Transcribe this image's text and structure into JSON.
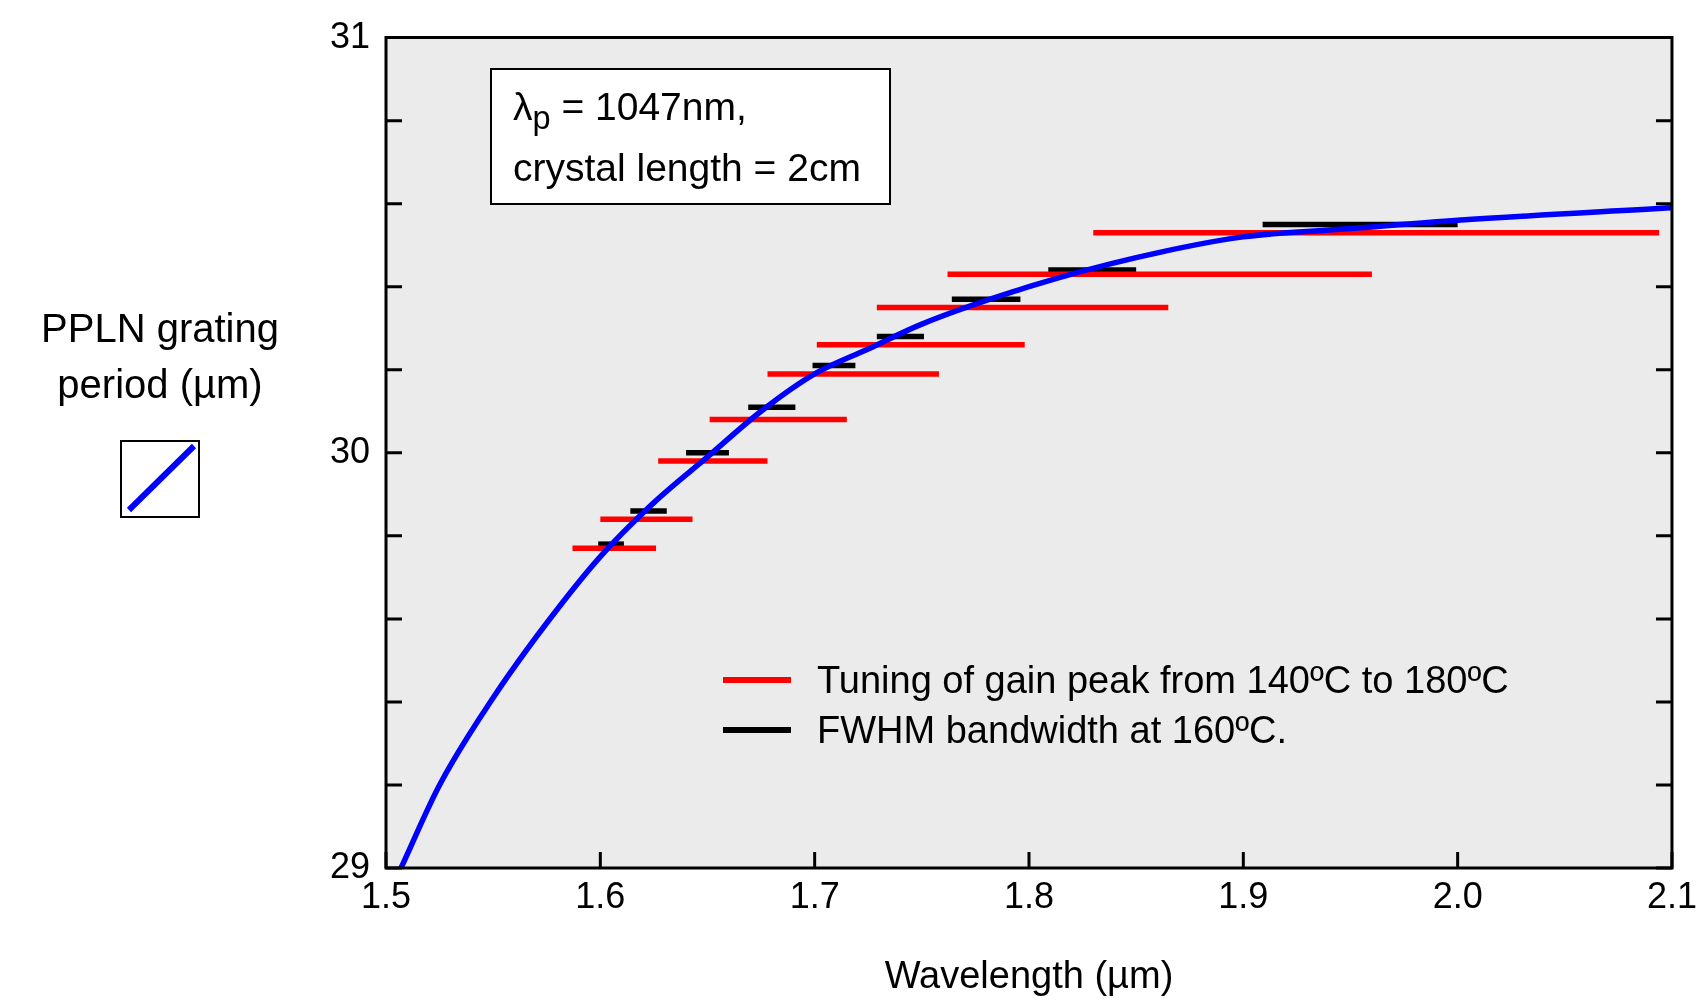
{
  "chart_data": {
    "type": "line",
    "xlabel": "Wavelength (µm)",
    "ylabel": "PPLN grating\nperiod (µm)",
    "xlim": [
      1.5,
      2.1
    ],
    "ylim": [
      29,
      31
    ],
    "xticks": [
      1.5,
      1.6,
      1.7,
      1.8,
      1.9,
      {
        "value": 2.0,
        "label": "2.0"
      },
      2.1
    ],
    "yticks": [
      29,
      {
        "value": 29.2,
        "label": null
      },
      {
        "value": 29.4,
        "label": null
      },
      {
        "value": 29.6,
        "label": null
      },
      {
        "value": 29.8,
        "label": null
      },
      30,
      {
        "value": 30.2,
        "label": null
      },
      {
        "value": 30.4,
        "label": null
      },
      {
        "value": 30.6,
        "label": null
      },
      {
        "value": 30.8,
        "label": null
      },
      31
    ],
    "grid": false,
    "legend": "bottom right",
    "line_style": "solid",
    "marker": "none",
    "annotations": [
      "λ$_{p}$ = 1047nm,\ncrystal length = 2cm"
    ],
    "series": [
      {
        "color": "#0000ff",
        "x": [
          1.507,
          1.525,
          1.55,
          1.575,
          1.6,
          1.625,
          1.65,
          1.675,
          1.7,
          1.725,
          1.75,
          1.8,
          1.85,
          1.9,
          1.95,
          2.0,
          2.1
        ],
        "values": [
          29.0,
          29.2,
          29.41,
          29.59,
          29.75,
          29.88,
          29.99,
          30.1,
          30.19,
          30.25,
          30.31,
          30.4,
          30.47,
          30.52,
          30.54,
          30.56,
          30.59
        ]
      },
      {
        "name": "Tuning of gain peak from 140ºC to 180ºC",
        "color": "#ff0000",
        "x": [
          1.587,
          1.626
        ],
        "values": [
          29.77,
          29.77
        ]
      },
      {
        "color": "#ff0000",
        "x": [
          1.6,
          1.643
        ],
        "values": [
          29.84,
          29.84
        ]
      },
      {
        "color": "#ff0000",
        "x": [
          1.627,
          1.678
        ],
        "values": [
          29.98,
          29.98
        ]
      },
      {
        "color": "#ff0000",
        "x": [
          1.651,
          1.715
        ],
        "values": [
          30.08,
          30.08
        ]
      },
      {
        "color": "#ff0000",
        "x": [
          1.678,
          1.758
        ],
        "values": [
          30.19,
          30.19
        ]
      },
      {
        "color": "#ff0000",
        "x": [
          1.701,
          1.798
        ],
        "values": [
          30.26,
          30.26
        ]
      },
      {
        "color": "#ff0000",
        "x": [
          1.729,
          1.865
        ],
        "values": [
          30.35,
          30.35
        ]
      },
      {
        "color": "#ff0000",
        "x": [
          1.762,
          1.96
        ],
        "values": [
          30.43,
          30.43
        ]
      },
      {
        "color": "#ff0000",
        "x": [
          1.83,
          2.094
        ],
        "values": [
          30.53,
          30.53
        ]
      },
      {
        "name": "FWHM bandwidth at 160ºC.",
        "color": "#000000",
        "x": [
          1.599,
          1.611
        ],
        "values": [
          29.78,
          29.78
        ]
      },
      {
        "color": "#000000",
        "x": [
          1.614,
          1.631
        ],
        "values": [
          29.86,
          29.86
        ]
      },
      {
        "color": "#000000",
        "x": [
          1.64,
          1.66
        ],
        "values": [
          30.0,
          30.0
        ]
      },
      {
        "color": "#000000",
        "x": [
          1.669,
          1.691
        ],
        "values": [
          30.11,
          30.11
        ]
      },
      {
        "color": "#000000",
        "x": [
          1.699,
          1.719
        ],
        "values": [
          30.21,
          30.21
        ]
      },
      {
        "color": "#000000",
        "x": [
          1.729,
          1.751
        ],
        "values": [
          30.28,
          30.28
        ]
      },
      {
        "color": "#000000",
        "x": [
          1.764,
          1.796
        ],
        "values": [
          30.37,
          30.37
        ]
      },
      {
        "color": "#000000",
        "x": [
          1.809,
          1.85
        ],
        "values": [
          30.44,
          30.44
        ]
      },
      {
        "color": "#000000",
        "x": [
          1.909,
          2.0
        ],
        "values": [
          30.55,
          30.55
        ]
      }
    ]
  }
}
